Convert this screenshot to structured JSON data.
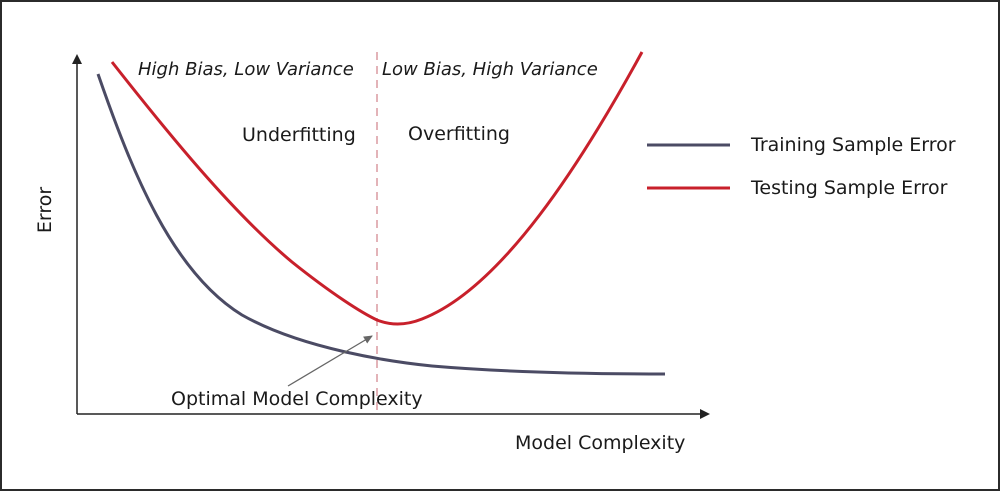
{
  "axes": {
    "x_label": "Model Complexity",
    "y_label": "Error"
  },
  "regions": {
    "left_title": "High Bias, Low Variance",
    "right_title": "Low Bias, High Variance",
    "left_zone": "Underfitting",
    "right_zone": "Overfitting"
  },
  "legend": {
    "training": "Training Sample Error",
    "testing": "Testing Sample Error"
  },
  "annotation": {
    "optimal": "Optimal Model Complexity"
  },
  "colors": {
    "training": "#4b4b64",
    "testing": "#c8202b",
    "divider": "#e3b3b8",
    "axis": "#222222"
  }
}
